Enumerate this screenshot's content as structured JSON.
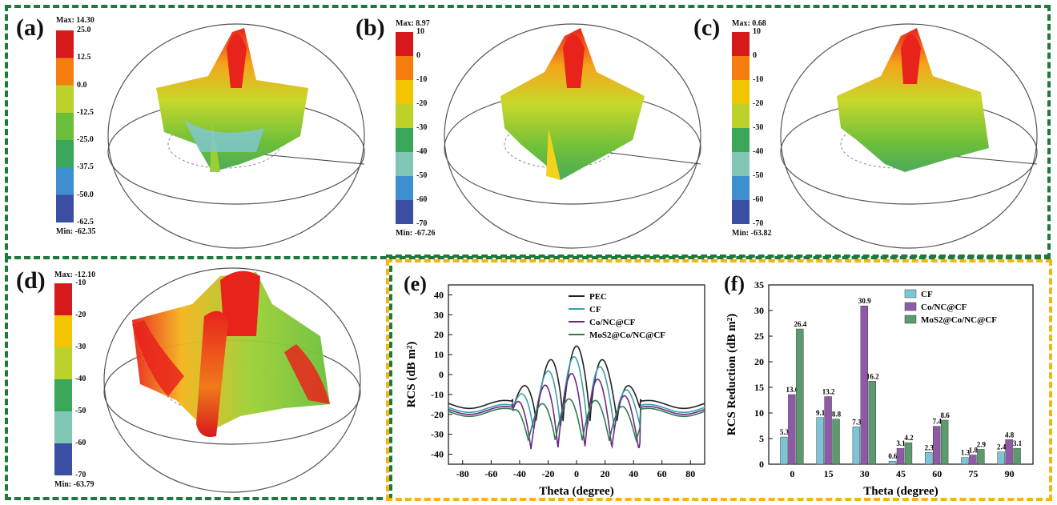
{
  "panels": [
    {
      "label": "(a)",
      "max": "Max: 14.30",
      "min": "Min: -62.35",
      "ticks": [
        "25.0",
        "12.5",
        "0.0",
        "-12.5",
        "-25.0",
        "-37.5",
        "-50.0",
        "-62.5"
      ]
    },
    {
      "label": "(b)",
      "max": "Max: 8.97",
      "min": "Min: -67.26",
      "ticks": [
        "10",
        "0",
        "-10",
        "-20",
        "-30",
        "-40",
        "-50",
        "-60",
        "-70"
      ]
    },
    {
      "label": "(c)",
      "max": "Max: 0.68",
      "min": "Min: -63.82",
      "ticks": [
        "10",
        "0",
        "-10",
        "-20",
        "-30",
        "-40",
        "-50",
        "-60",
        "-70"
      ]
    },
    {
      "label": "(d)",
      "max": "Max: -12.10",
      "min": "Min: -63.79",
      "ticks": [
        "-10",
        "-20",
        "-30",
        "-40",
        "-50",
        "-60",
        "-70"
      ]
    }
  ],
  "colors": {
    "green_frame": "#1e7a3a",
    "yellow_frame": "#f2b517",
    "cb_gradient": [
      "#d7191c",
      "#f57d0e",
      "#f2c500",
      "#bcd12a",
      "#6cbf3a",
      "#3aa65a",
      "#7fc7b4",
      "#3d8fd0",
      "#3a4ea2"
    ]
  },
  "chart_data": [
    {
      "type": "line",
      "panel": "(e)",
      "xlabel": "Theta (degree)",
      "ylabel": "RCS (dB m²)",
      "xlim": [
        -90,
        90
      ],
      "ylim": [
        -45,
        45
      ],
      "xticks": [
        -80,
        -60,
        -40,
        -20,
        0,
        20,
        40,
        60,
        80
      ],
      "yticks": [
        -40,
        -30,
        -20,
        -10,
        0,
        10,
        20,
        30,
        40
      ],
      "legend": "top-right",
      "series": [
        {
          "name": "PEC",
          "color": "#222222",
          "peak": 14.3,
          "floor": -15,
          "dip": -25
        },
        {
          "name": "CF",
          "color": "#3a9fb0",
          "peak": 9,
          "floor": -17,
          "dip": -30
        },
        {
          "name": "Co/NC@CF",
          "color": "#6b2a86",
          "peak": 0.7,
          "floor": -18,
          "dip": -40
        },
        {
          "name": "MoS2@Co/NC@CF",
          "color": "#2f7a4f",
          "peak": -12.1,
          "floor": -19,
          "dip": -35
        }
      ]
    },
    {
      "type": "bar",
      "panel": "(f)",
      "xlabel": "Theta (degree)",
      "ylabel": "RCS Reduction (dB m²)",
      "categories": [
        "0",
        "15",
        "30",
        "45",
        "60",
        "75",
        "90"
      ],
      "ylim": [
        0,
        35
      ],
      "yticks": [
        0,
        5,
        10,
        15,
        20,
        25,
        30,
        35
      ],
      "legend": "top-right",
      "series": [
        {
          "name": "CF",
          "color": "#7cc5d8",
          "values": [
            5.3,
            9.1,
            7.3,
            0.6,
            2.3,
            1.3,
            2.4
          ]
        },
        {
          "name": "Co/NC@CF",
          "color": "#8e5aa8",
          "values": [
            13.6,
            13.2,
            30.9,
            3.1,
            7.4,
            1.8,
            4.8
          ]
        },
        {
          "name": "MoS2@Co/NC@CF",
          "color": "#5a9a6e",
          "values": [
            26.4,
            8.8,
            16.2,
            4.2,
            8.6,
            2.9,
            3.1
          ]
        }
      ],
      "labels": [
        [
          "5.3",
          "9.1",
          "7.3",
          "0.6",
          "2.3",
          "1.3",
          "2.4"
        ],
        [
          "13.6",
          "13.2",
          "30.9",
          "3.1",
          "7.4",
          "1.8",
          "4.8"
        ],
        [
          "26.4",
          "8.8",
          "16.2",
          "4.2",
          "8.6",
          "2.9",
          "3.1"
        ]
      ]
    }
  ]
}
